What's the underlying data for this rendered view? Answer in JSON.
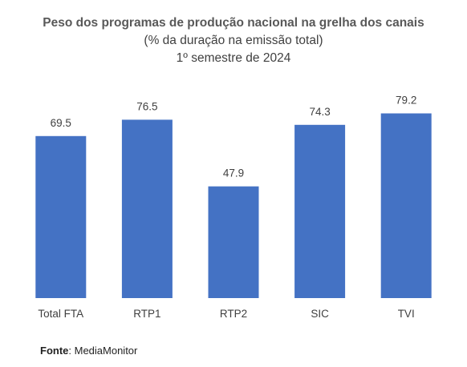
{
  "chart_data": {
    "type": "bar",
    "title": "Peso dos programas de produção nacional na grelha dos canais",
    "subtitle_1": "(% da duração na emissão total)",
    "subtitle_2": "1º semestre de 2024",
    "categories": [
      "Total FTA",
      "RTP1",
      "RTP2",
      "SIC",
      "TVI"
    ],
    "values": [
      69.5,
      76.5,
      47.9,
      74.3,
      79.2
    ],
    "value_labels": [
      "69.5",
      "76.5",
      "47.9",
      "74.3",
      "79.2"
    ],
    "bar_color": "#4472C4",
    "ylim": [
      0,
      100
    ],
    "grid": false,
    "legend": "none"
  },
  "source": {
    "label": "Fonte",
    "text": ": MediaMonitor"
  }
}
